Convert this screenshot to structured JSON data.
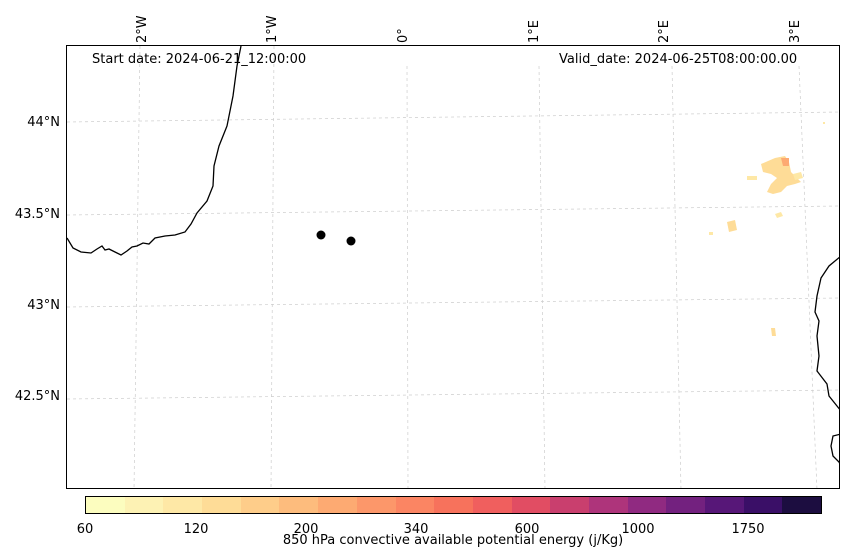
{
  "map": {
    "start_date": "Start date: 2024-06-21_12:00:00",
    "valid_date": "Valid_date: 2024-06-25T08:00:00.00",
    "lon_labels": [
      "2°W",
      "1°W",
      "0°",
      "1°E",
      "2°E",
      "3°E"
    ],
    "lat_labels": [
      "44°N",
      "43.5°N",
      "43°N",
      "42.5°N"
    ],
    "markers": [
      {
        "lon": -0.35,
        "lat": 43.38
      },
      {
        "lon": -0.13,
        "lat": 43.36
      }
    ],
    "colors": {
      "coastline": "#000000",
      "gridline": "#cccccc",
      "marker": "#000000"
    }
  },
  "colorbar": {
    "label": "850 hPa convective available potential energy (j/Kg)",
    "tick_labels": [
      "60",
      "120",
      "200",
      "340",
      "600",
      "1000",
      "1750"
    ],
    "colors": [
      "#fcfdbf",
      "#fdf2b4",
      "#fee8a6",
      "#fedc97",
      "#fecd8a",
      "#fdbc7d",
      "#fdaa72",
      "#fc976a",
      "#fb8563",
      "#f7725c",
      "#f05f5e",
      "#e14d63",
      "#c93f6e",
      "#ae347b",
      "#902a81",
      "#73217f",
      "#571778",
      "#3a0f67",
      "#1c0d40"
    ]
  }
}
